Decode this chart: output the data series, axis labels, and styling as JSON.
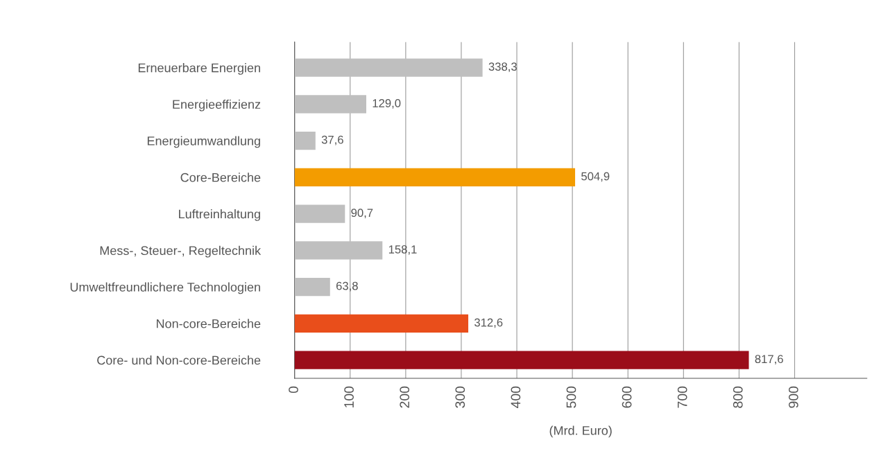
{
  "chart_data": {
    "type": "bar",
    "orientation": "horizontal",
    "xlabel": "(Mrd. Euro)",
    "categories": [
      "Erneuerbare Energien",
      "Energieeffizienz",
      "Energieumwandlung",
      "Core-Bereiche",
      "Luftreinhaltung",
      "Mess-, Steuer-, Regeltechnik",
      "Umweltfreundlichere Technologien",
      "Non-core-Bereiche",
      "Core- und Non-core-Bereiche"
    ],
    "values": [
      338.3,
      129.0,
      37.6,
      504.9,
      90.7,
      158.1,
      63.8,
      312.6,
      817.6
    ],
    "value_labels": [
      "338,3",
      "129,0",
      "37,6",
      "504,9",
      "90,7",
      "158,1",
      "63,8",
      "312,6",
      "817,6"
    ],
    "colors": [
      "#bfbfbf",
      "#bfbfbf",
      "#bfbfbf",
      "#f39c00",
      "#bfbfbf",
      "#bfbfbf",
      "#bfbfbf",
      "#e94e1b",
      "#9b0d1a"
    ],
    "xlim": [
      0,
      1030
    ],
    "xticks": [
      0,
      100,
      200,
      300,
      400,
      500,
      600,
      700,
      800,
      900
    ],
    "grid": "x"
  }
}
